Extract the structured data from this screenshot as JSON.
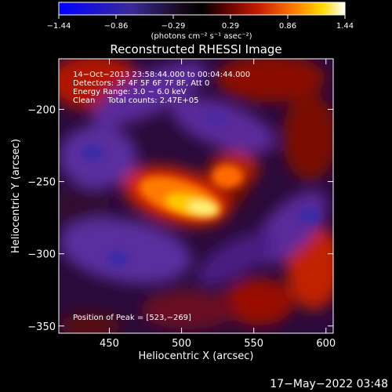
{
  "title": "Reconstructed RHESSI Image",
  "colorbar": {
    "unit_label": "(photons cm⁻² s⁻¹ asec⁻²)",
    "tick_labels": [
      "−1.44",
      "−0.86",
      "−0.29",
      "0.29",
      "0.86",
      "1.44"
    ],
    "min": -1.44,
    "max": 1.44,
    "colormap": [
      "#0000ff",
      "#3a2a9a",
      "#1a0a20",
      "#000000",
      "#5a0000",
      "#c81e00",
      "#ff7a00",
      "#ffd800",
      "#ffffff"
    ]
  },
  "image": {
    "info_lines": [
      "14−Oct−2013 23:58:44.000 to 00:04:44.000",
      "Detectors: 3F 4F 5F 6F 7F 8F, Att 0",
      "Energy Range: 3.0 − 6.0 keV",
      "Clean     Total counts: 2.47E+05"
    ],
    "peak_label": "Position of Peak = [523,−269]",
    "peak_position": [
      523,
      -269
    ]
  },
  "axes": {
    "xlabel": "Heliocentric X (arcsec)",
    "ylabel": "Heliocentric Y (arcsec)",
    "xlim": [
      415,
      605
    ],
    "ylim": [
      -355,
      -165
    ],
    "xticks": [
      450,
      500,
      550,
      600
    ],
    "yticks": [
      -200,
      -250,
      -300,
      -350
    ],
    "xtick_labels": [
      "450",
      "500",
      "550",
      "600"
    ],
    "ytick_labels": [
      "−200",
      "−250",
      "−300",
      "−350"
    ]
  },
  "footer_timestamp": "17−May−2022 03:48"
}
